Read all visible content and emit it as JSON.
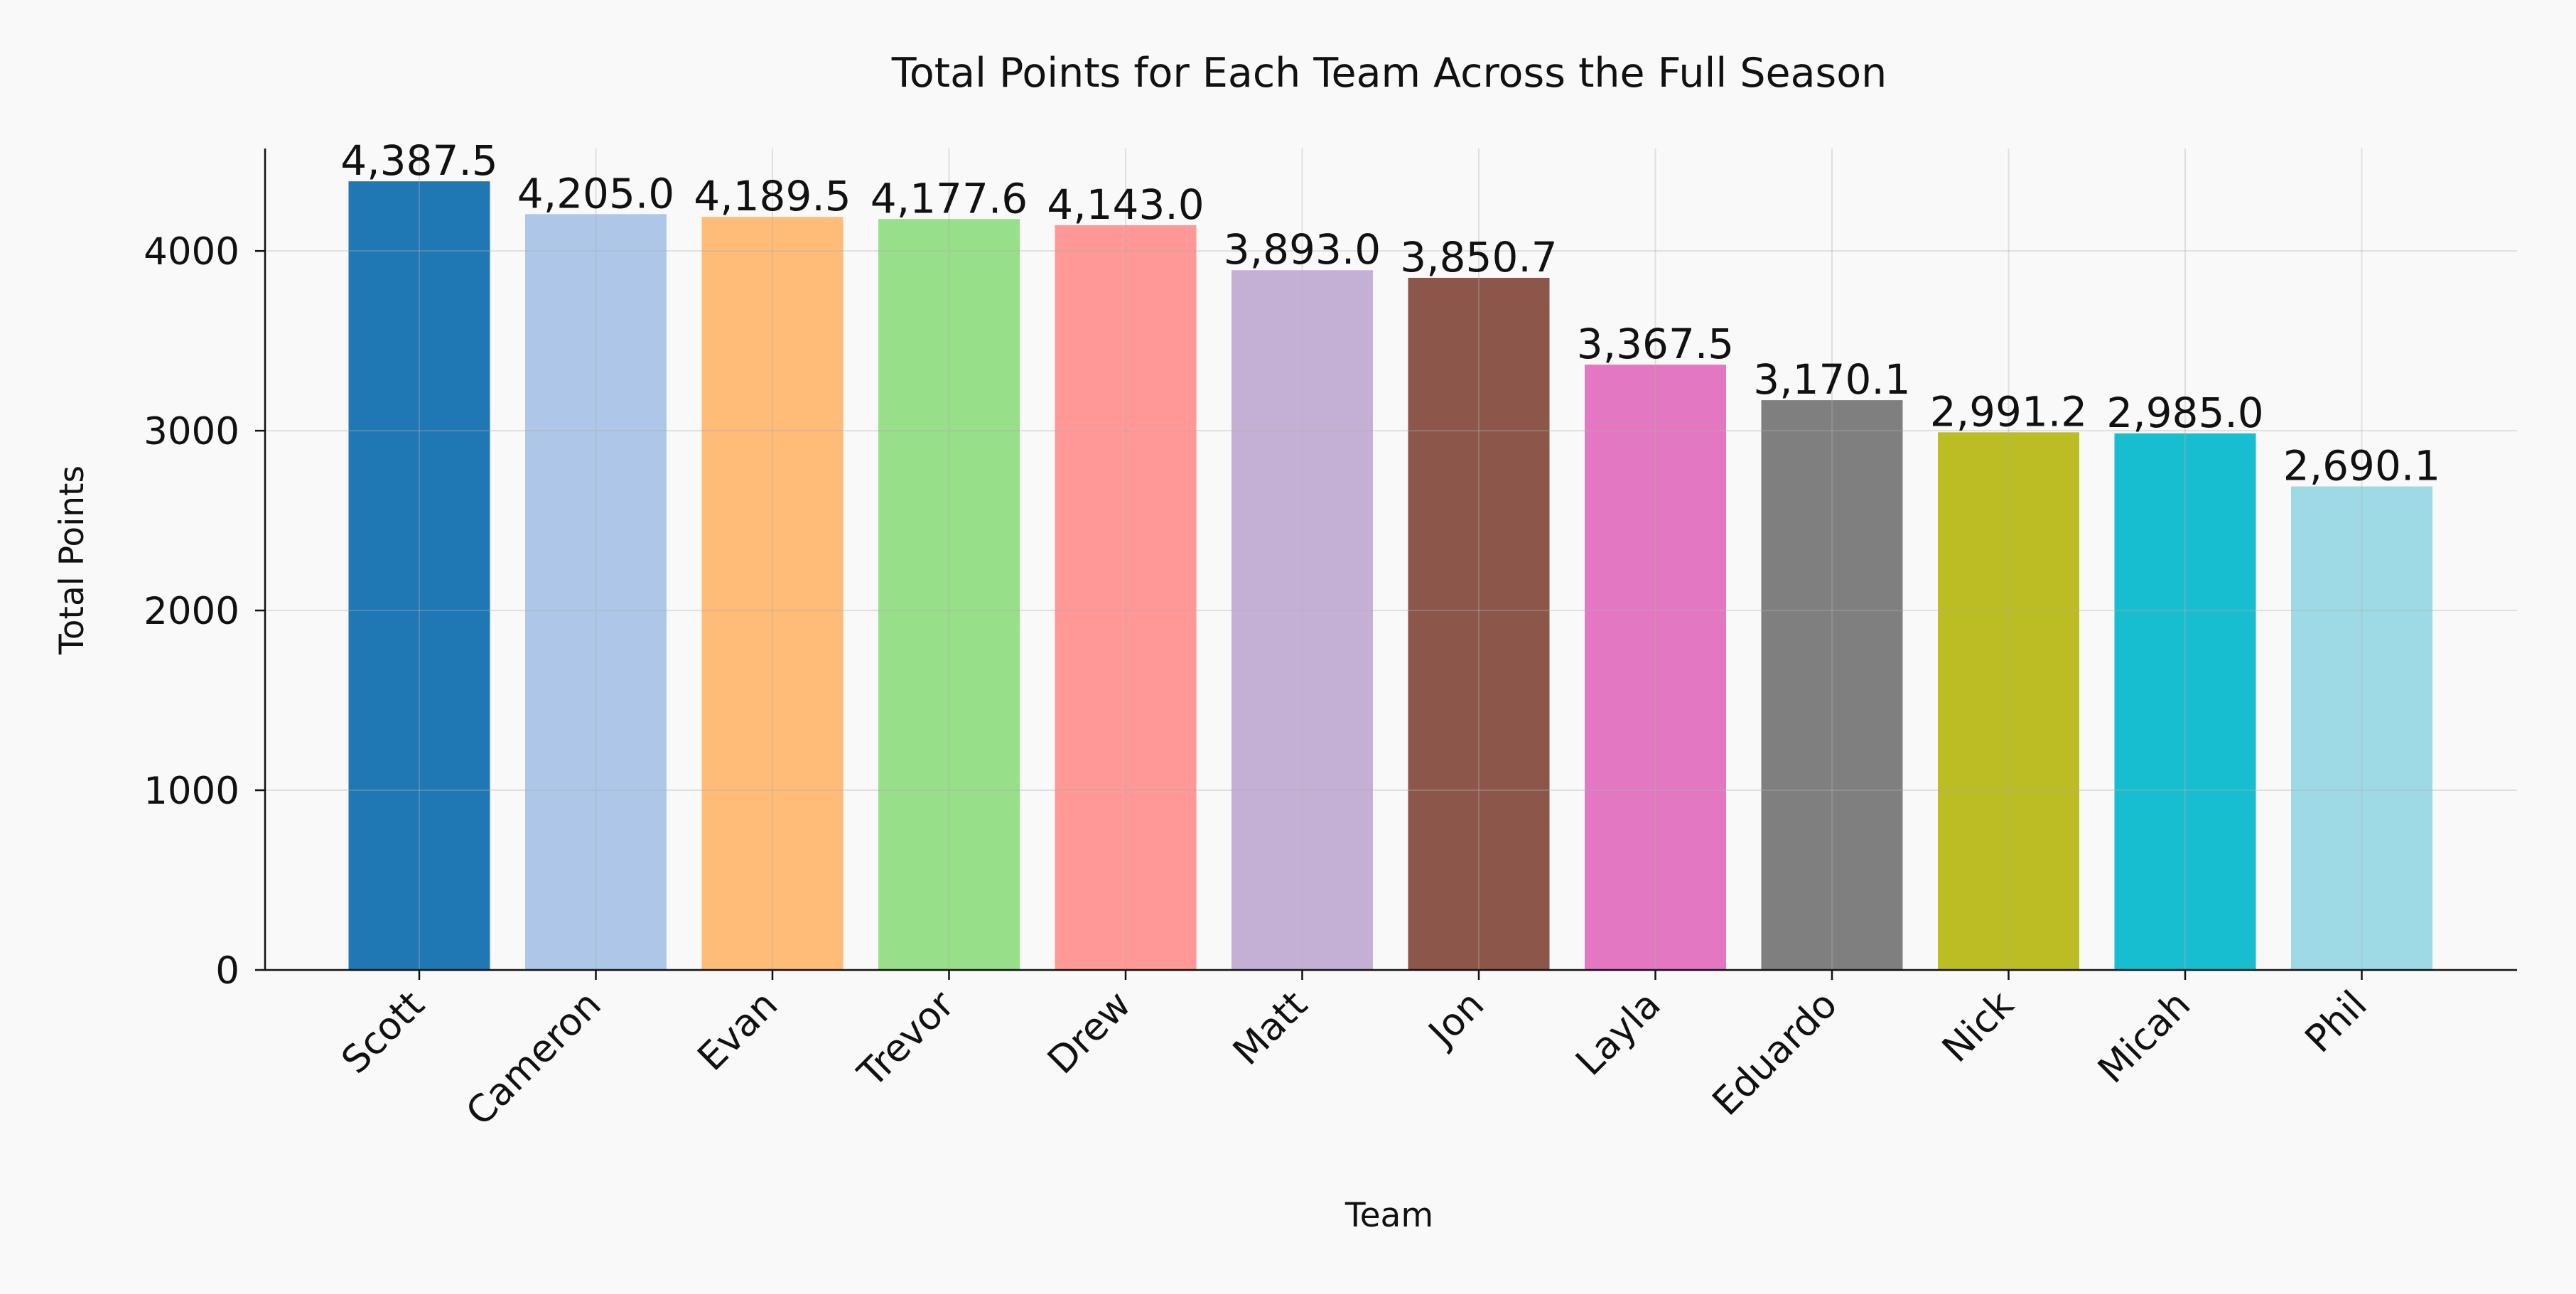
{
  "chart_data": {
    "type": "bar",
    "title": "Total Points for Each Team Across the Full Season",
    "xlabel": "Team",
    "ylabel": "Total Points",
    "categories": [
      "Scott",
      "Cameron",
      "Evan",
      "Trevor",
      "Drew",
      "Matt",
      "Jon",
      "Layla",
      "Eduardo",
      "Nick",
      "Micah",
      "Phil"
    ],
    "values": [
      4387.5,
      4205.0,
      4189.5,
      4177.6,
      4143.0,
      3893.0,
      3850.7,
      3367.5,
      3170.1,
      2991.2,
      2985.0,
      2690.1
    ],
    "data_labels": [
      "4,387.5",
      "4,205.0",
      "4,189.5",
      "4,177.6",
      "4,143.0",
      "3,893.0",
      "3,850.7",
      "3,367.5",
      "3,170.1",
      "2,991.2",
      "2,985.0",
      "2,690.1"
    ],
    "colors": [
      "#1f77b4",
      "#aec7e8",
      "#ffbb78",
      "#98df8a",
      "#ff9896",
      "#c5b0d5",
      "#8c564b",
      "#e377c2",
      "#7f7f7f",
      "#bcbd22",
      "#17becf",
      "#9edae5"
    ],
    "yticks": [
      0,
      1000,
      2000,
      3000,
      4000
    ],
    "ylim": [
      0,
      4570
    ],
    "grid": true,
    "legend": "none"
  }
}
